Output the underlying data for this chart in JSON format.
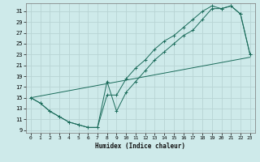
{
  "xlabel": "Humidex (Indice chaleur)",
  "background_color": "#ceeaea",
  "grid_color": "#b8d4d4",
  "line_color": "#1a6b5a",
  "xlim": [
    -0.5,
    23.5
  ],
  "ylim": [
    8.5,
    32.5
  ],
  "yticks": [
    9,
    11,
    13,
    15,
    17,
    19,
    21,
    23,
    25,
    27,
    29,
    31
  ],
  "xticks": [
    0,
    1,
    2,
    3,
    4,
    5,
    6,
    7,
    8,
    9,
    10,
    11,
    12,
    13,
    14,
    15,
    16,
    17,
    18,
    19,
    20,
    21,
    22,
    23
  ],
  "line1_x": [
    0,
    1,
    2,
    3,
    4,
    5,
    6,
    7,
    8,
    9,
    10,
    11,
    12,
    13,
    14,
    15,
    16,
    17,
    18,
    19,
    20,
    21,
    22,
    23
  ],
  "line1_y": [
    15,
    14,
    12.5,
    11.5,
    10.5,
    10,
    9.5,
    9.5,
    18,
    12.5,
    16,
    18,
    20,
    22,
    23.5,
    25,
    26.5,
    27.5,
    29.5,
    31.5,
    31.5,
    32,
    30.5,
    23
  ],
  "line2_x": [
    0,
    1,
    2,
    3,
    4,
    5,
    6,
    7,
    8,
    9,
    10,
    11,
    12,
    13,
    14,
    15,
    16,
    17,
    18,
    19,
    20,
    21,
    22,
    23
  ],
  "line2_y": [
    15,
    14,
    12.5,
    11.5,
    10.5,
    10,
    9.5,
    9.5,
    15.5,
    15.5,
    18.5,
    20.5,
    22,
    24,
    25.5,
    26.5,
    28,
    29.5,
    31,
    32,
    31.5,
    32,
    30.5,
    23
  ],
  "line3_x": [
    0,
    23
  ],
  "line3_y": [
    15,
    22.5
  ]
}
